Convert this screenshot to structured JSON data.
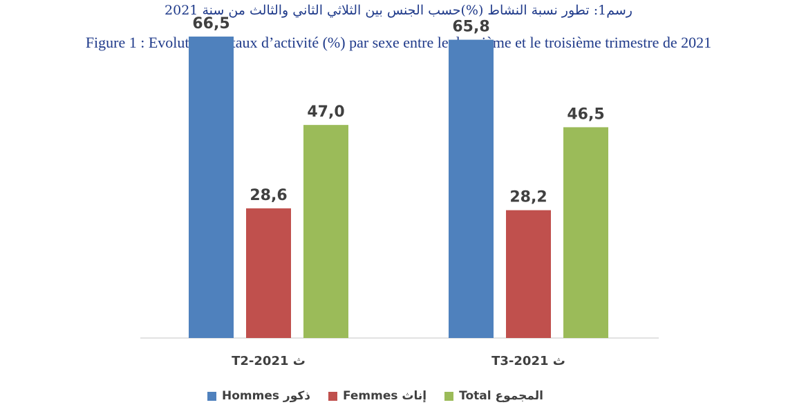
{
  "header": {
    "title_ar": "رسم1: تطور نسبة النشاط (%)حسب الجنس بين الثلاثي الثاني والثالث من سنة 2021",
    "title_fr": "Figure 1 : Evolution du taux d’activité (%) par sexe entre le deuxième et le troisième trimestre de 2021"
  },
  "chart_data": {
    "type": "bar",
    "categories": [
      "ث 2021-T2",
      "ث 2021-T3"
    ],
    "series": [
      {
        "name": "Hommes ذكور",
        "color": "#4f81bd",
        "values": [
          66.5,
          65.8
        ],
        "labels": [
          "66,5",
          "65,8"
        ]
      },
      {
        "name": "Femmes إناث",
        "color": "#c0504d",
        "values": [
          28.6,
          28.2
        ],
        "labels": [
          "28,6",
          "28,2"
        ]
      },
      {
        "name": "Total المجموع",
        "color": "#9bbb59",
        "values": [
          47.0,
          46.5
        ],
        "labels": [
          "47,0",
          "46,5"
        ]
      }
    ],
    "ylim": [
      0,
      70
    ],
    "grid": false,
    "legend_position": "bottom"
  }
}
